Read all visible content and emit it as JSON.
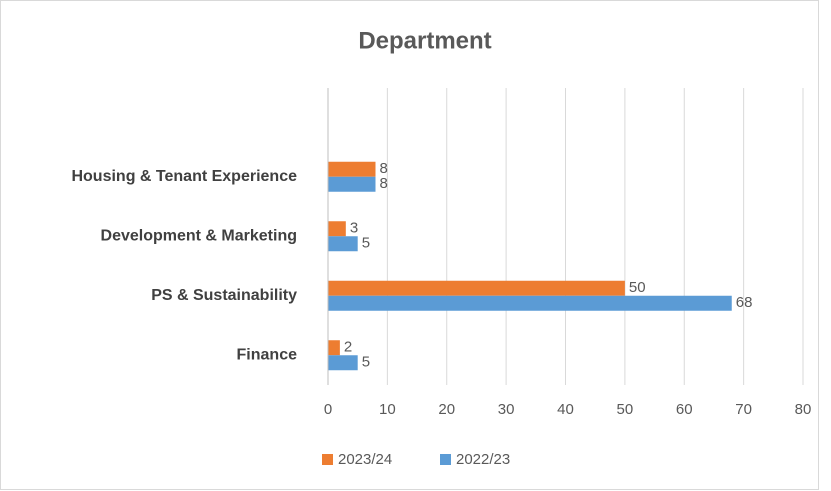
{
  "chart_data": {
    "type": "bar",
    "orientation": "horizontal",
    "title": "Department",
    "categories": [
      "Housing & Tenant Experience",
      "Development & Marketing",
      "PS & Sustainability",
      "Finance"
    ],
    "series": [
      {
        "name": "2023/24",
        "color": "#ED7D31",
        "values": [
          8,
          3,
          50,
          2
        ]
      },
      {
        "name": "2022/23",
        "color": "#5B9BD5",
        "values": [
          8,
          5,
          68,
          5
        ]
      }
    ],
    "xlim": [
      0,
      80
    ],
    "xticks": [
      0,
      10,
      20,
      30,
      40,
      50,
      60,
      70,
      80
    ],
    "grid": true,
    "legend": "bottom"
  }
}
